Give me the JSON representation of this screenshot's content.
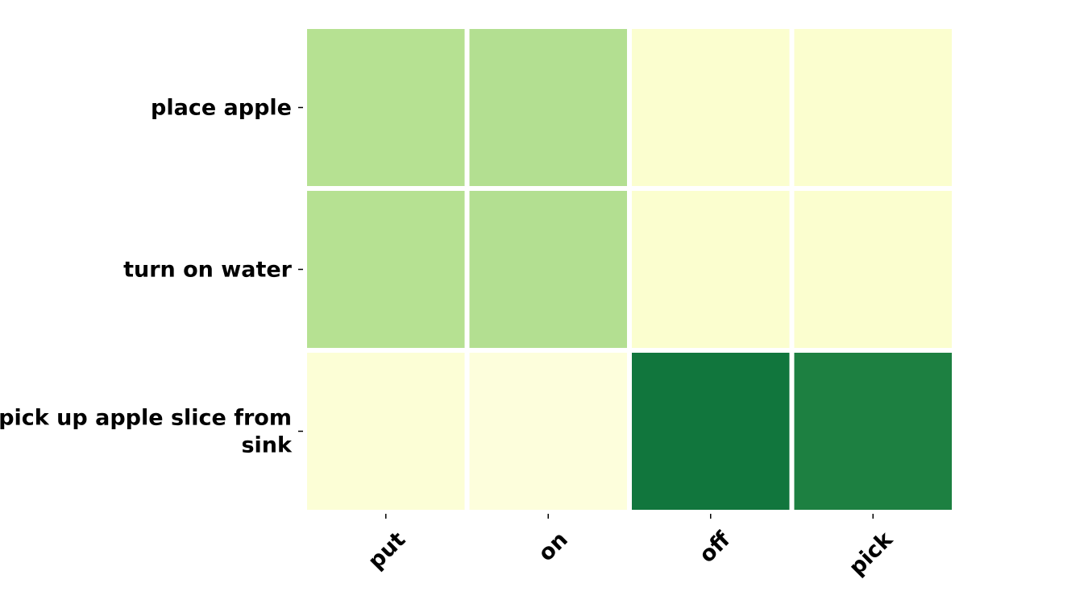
{
  "chart_data": {
    "type": "heatmap",
    "title": "",
    "xlabel": "",
    "ylabel": "",
    "x_categories": [
      "put",
      "on",
      "off",
      "pick"
    ],
    "y_categories": [
      [
        "place apple"
      ],
      [
        "turn on water"
      ],
      [
        "pick up apple slice from",
        "sink"
      ]
    ],
    "values": [
      [
        0.4,
        0.41,
        0.07,
        0.07
      ],
      [
        0.4,
        0.41,
        0.07,
        0.07
      ],
      [
        0.05,
        0.03,
        0.93,
        0.88
      ]
    ],
    "colorscale": [
      "#ffffe5",
      "#f7fcb9",
      "#d9f0a3",
      "#addd8e",
      "#78c679",
      "#41ab5d",
      "#238443",
      "#006837"
    ],
    "colorbar": false,
    "grid": false
  }
}
